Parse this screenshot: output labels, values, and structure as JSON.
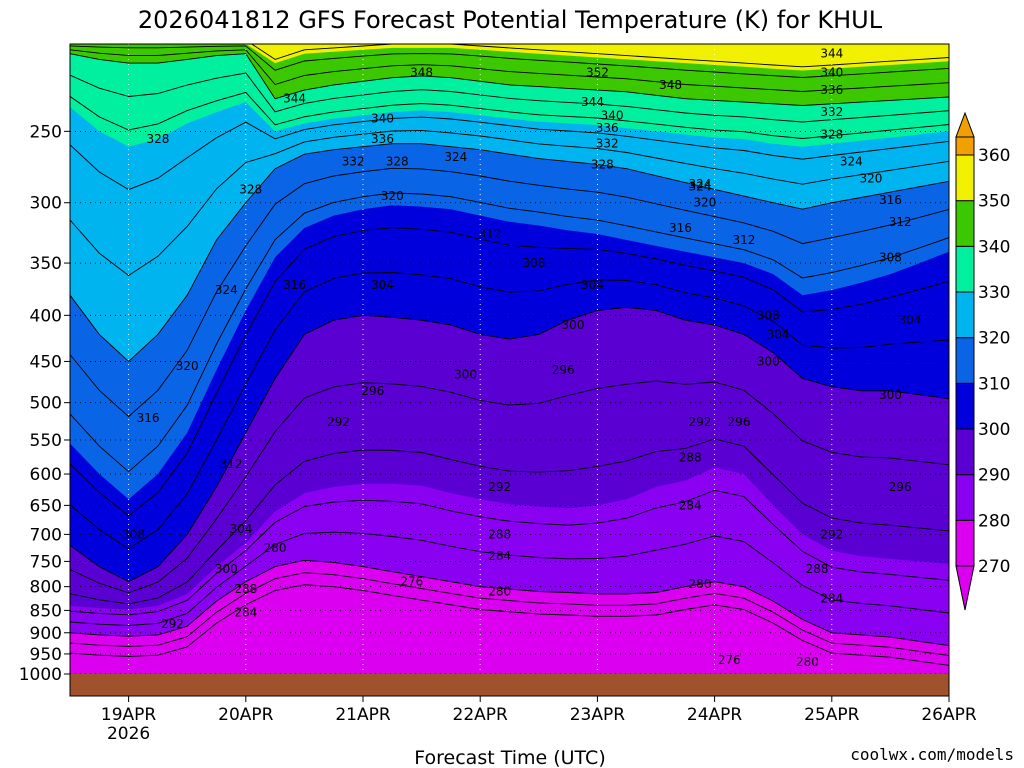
{
  "chart_data": {
    "type": "heatmap",
    "title": "2026041812 GFS Forecast Potential Temperature (K) for KHUL",
    "xlabel": "Forecast Time (UTC)",
    "ylabel": "",
    "x_ticks": [
      {
        "label": "19APR",
        "sub": "2026",
        "t": 12
      },
      {
        "label": "20APR",
        "sub": "",
        "t": 36
      },
      {
        "label": "21APR",
        "sub": "",
        "t": 60
      },
      {
        "label": "22APR",
        "sub": "",
        "t": 84
      },
      {
        "label": "23APR",
        "sub": "",
        "t": 108
      },
      {
        "label": "24APR",
        "sub": "",
        "t": 132
      },
      {
        "label": "25APR",
        "sub": "",
        "t": 156
      },
      {
        "label": "26APR",
        "sub": "",
        "t": 180
      }
    ],
    "xlim_hours": [
      0,
      180
    ],
    "y_ticks": [
      250,
      300,
      350,
      400,
      450,
      500,
      550,
      600,
      650,
      700,
      750,
      800,
      850,
      900,
      950,
      1000
    ],
    "ylim_hpa": [
      200,
      1000
    ],
    "y_scale": "log-pressure",
    "colorbar": {
      "levels": [
        270,
        280,
        290,
        300,
        310,
        320,
        330,
        340,
        350,
        360
      ],
      "colors": [
        "#dc00f0",
        "#8a00f0",
        "#5a00d2",
        "#0000dc",
        "#0a64e6",
        "#00b4f0",
        "#00f0a0",
        "#3cc800",
        "#f0f000",
        "#f0a000"
      ]
    },
    "contour_interval": 4,
    "isentropes_hpa": {
      "times": [
        0,
        6,
        12,
        18,
        24,
        30,
        36,
        42,
        48,
        54,
        60,
        66,
        72,
        78,
        84,
        90,
        96,
        102,
        108,
        114,
        120,
        126,
        132,
        138,
        144,
        150,
        156,
        162,
        168,
        174,
        180
      ],
      "280": [
        900,
        905,
        908,
        905,
        885,
        830,
        790,
        760,
        748,
        752,
        760,
        770,
        780,
        790,
        800,
        805,
        810,
        812,
        815,
        815,
        812,
        800,
        790,
        800,
        830,
        870,
        900,
        905,
        910,
        920,
        930
      ],
      "290": [
        840,
        845,
        848,
        840,
        815,
        760,
        715,
        660,
        630,
        620,
        615,
        615,
        618,
        630,
        640,
        648,
        652,
        655,
        650,
        640,
        620,
        610,
        590,
        600,
        650,
        700,
        730,
        740,
        745,
        750,
        755
      ],
      "300": [
        720,
        760,
        790,
        760,
        700,
        620,
        540,
        470,
        420,
        405,
        400,
        402,
        405,
        410,
        420,
        425,
        420,
        405,
        395,
        392,
        395,
        405,
        410,
        420,
        440,
        470,
        480,
        485,
        485,
        490,
        495
      ],
      "310": [
        555,
        600,
        640,
        600,
        540,
        460,
        395,
        345,
        320,
        310,
        305,
        302,
        303,
        305,
        310,
        315,
        318,
        322,
        325,
        330,
        335,
        340,
        345,
        350,
        360,
        380,
        375,
        368,
        360,
        350,
        340
      ],
      "320": [
        380,
        420,
        450,
        420,
        380,
        330,
        300,
        275,
        265,
        262,
        260,
        258,
        258,
        260,
        262,
        265,
        268,
        270,
        272,
        275,
        280,
        285,
        290,
        295,
        300,
        305,
        300,
        296,
        292,
        288,
        284
      ],
      "330": [
        235,
        250,
        260,
        255,
        245,
        238,
        232,
        250,
        245,
        242,
        240,
        238,
        237,
        238,
        240,
        242,
        244,
        245,
        246,
        248,
        250,
        252,
        254,
        255,
        258,
        260,
        258,
        256,
        254,
        252,
        250
      ],
      "340": [
        205,
        208,
        210,
        210,
        208,
        206,
        205,
        230,
        225,
        222,
        220,
        218,
        217,
        218,
        220,
        222,
        223,
        224,
        225,
        226,
        228,
        230,
        231,
        232,
        233,
        234,
        233,
        232,
        231,
        230,
        229
      ],
      "350": [
        200,
        200,
        200,
        200,
        200,
        200,
        200,
        210,
        205,
        204,
        203,
        202,
        202,
        202,
        203,
        204,
        205,
        206,
        207,
        208,
        209,
        210,
        211,
        212,
        213,
        214,
        213,
        212,
        211,
        210,
        209
      ]
    },
    "contour_labels": [
      {
        "v": 348,
        "t": 72,
        "p": 215
      },
      {
        "v": 352,
        "t": 108,
        "p": 215
      },
      {
        "v": 348,
        "t": 123,
        "p": 222
      },
      {
        "v": 344,
        "t": 156,
        "p": 205
      },
      {
        "v": 340,
        "t": 156,
        "p": 215
      },
      {
        "v": 336,
        "t": 156,
        "p": 225
      },
      {
        "v": 332,
        "t": 156,
        "p": 238
      },
      {
        "v": 328,
        "t": 156,
        "p": 252
      },
      {
        "v": 324,
        "t": 160,
        "p": 270
      },
      {
        "v": 320,
        "t": 164,
        "p": 282
      },
      {
        "v": 316,
        "t": 168,
        "p": 298
      },
      {
        "v": 312,
        "t": 170,
        "p": 315
      },
      {
        "v": 308,
        "t": 168,
        "p": 345
      },
      {
        "v": 304,
        "t": 172,
        "p": 405
      },
      {
        "v": 300,
        "t": 168,
        "p": 490
      },
      {
        "v": 296,
        "t": 170,
        "p": 620
      },
      {
        "v": 292,
        "t": 156,
        "p": 700
      },
      {
        "v": 288,
        "t": 153,
        "p": 765
      },
      {
        "v": 284,
        "t": 156,
        "p": 825
      },
      {
        "v": 280,
        "t": 151,
        "p": 970
      },
      {
        "v": 276,
        "t": 135,
        "p": 965
      },
      {
        "v": 344,
        "t": 46,
        "p": 230
      },
      {
        "v": 340,
        "t": 64,
        "p": 242
      },
      {
        "v": 336,
        "t": 64,
        "p": 255
      },
      {
        "v": 332,
        "t": 58,
        "p": 270
      },
      {
        "v": 328,
        "t": 67,
        "p": 270
      },
      {
        "v": 324,
        "t": 79,
        "p": 267
      },
      {
        "v": 320,
        "t": 66,
        "p": 295
      },
      {
        "v": 328,
        "t": 18,
        "p": 255
      },
      {
        "v": 328,
        "t": 37,
        "p": 290
      },
      {
        "v": 324,
        "t": 32,
        "p": 375
      },
      {
        "v": 320,
        "t": 24,
        "p": 455
      },
      {
        "v": 316,
        "t": 16,
        "p": 520
      },
      {
        "v": 312,
        "t": 33,
        "p": 585
      },
      {
        "v": 308,
        "t": 13,
        "p": 700
      },
      {
        "v": 304,
        "t": 35,
        "p": 690
      },
      {
        "v": 300,
        "t": 32,
        "p": 765
      },
      {
        "v": 288,
        "t": 36,
        "p": 805
      },
      {
        "v": 284,
        "t": 36,
        "p": 855
      },
      {
        "v": 292,
        "t": 21,
        "p": 880
      },
      {
        "v": 316,
        "t": 46,
        "p": 370
      },
      {
        "v": 304,
        "t": 64,
        "p": 370
      },
      {
        "v": 312,
        "t": 86,
        "p": 325
      },
      {
        "v": 308,
        "t": 95,
        "p": 350
      },
      {
        "v": 304,
        "t": 107,
        "p": 370
      },
      {
        "v": 300,
        "t": 103,
        "p": 410
      },
      {
        "v": 300,
        "t": 81,
        "p": 465
      },
      {
        "v": 296,
        "t": 62,
        "p": 485
      },
      {
        "v": 296,
        "t": 101,
        "p": 460
      },
      {
        "v": 292,
        "t": 55,
        "p": 525
      },
      {
        "v": 292,
        "t": 129,
        "p": 525
      },
      {
        "v": 296,
        "t": 137,
        "p": 525
      },
      {
        "v": 300,
        "t": 143,
        "p": 450
      },
      {
        "v": 304,
        "t": 145,
        "p": 420
      },
      {
        "v": 308,
        "t": 143,
        "p": 400
      },
      {
        "v": 312,
        "t": 138,
        "p": 330
      },
      {
        "v": 316,
        "t": 125,
        "p": 320
      },
      {
        "v": 320,
        "t": 130,
        "p": 300
      },
      {
        "v": 324,
        "t": 129,
        "p": 288
      },
      {
        "v": 328,
        "t": 109,
        "p": 272
      },
      {
        "v": 332,
        "t": 110,
        "p": 258
      },
      {
        "v": 336,
        "t": 110,
        "p": 248
      },
      {
        "v": 340,
        "t": 111,
        "p": 240
      },
      {
        "v": 344,
        "t": 107,
        "p": 232
      },
      {
        "v": 292,
        "t": 88,
        "p": 620
      },
      {
        "v": 288,
        "t": 88,
        "p": 700
      },
      {
        "v": 284,
        "t": 88,
        "p": 740
      },
      {
        "v": 280,
        "t": 42,
        "p": 725
      },
      {
        "v": 276,
        "t": 70,
        "p": 790
      },
      {
        "v": 280,
        "t": 88,
        "p": 810
      },
      {
        "v": 280,
        "t": 129,
        "p": 795
      },
      {
        "v": 284,
        "t": 127,
        "p": 650
      },
      {
        "v": 288,
        "t": 127,
        "p": 575
      },
      {
        "v": 324,
        "t": 129,
        "p": 286
      }
    ],
    "ground_level_hpa": 1000,
    "grid": "dotted"
  },
  "credit": {
    "text": "coolwx.com/models",
    "color": "#e00000"
  }
}
